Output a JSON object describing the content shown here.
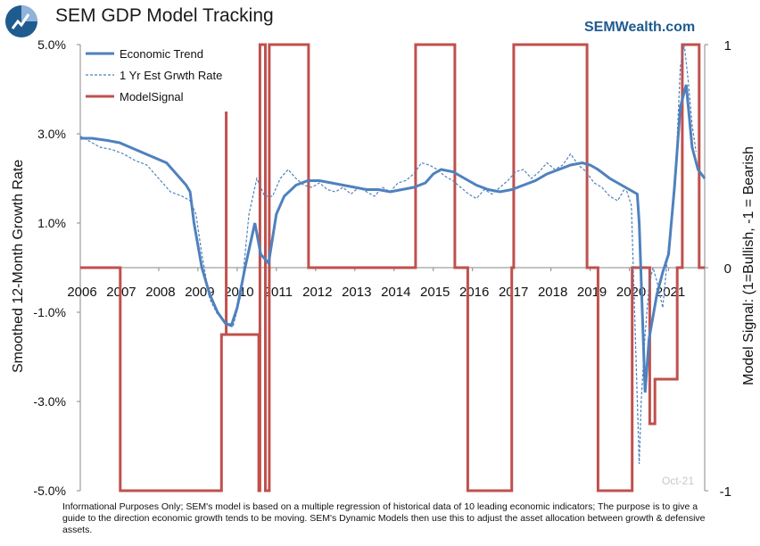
{
  "header": {
    "title": "SEM GDP Model Tracking",
    "brand": "SEMWealth.com"
  },
  "footnote": "Informational Purposes Only; SEM's model is based on a multiple regression of historical data of 10 leading economic indicators; The purpose is to give a guide to the direction economic growth tends to be moving. SEM's Dynamic Models then use this to adjust the asset allocation between growth & defensive assets.",
  "watermark": "Oct-21",
  "colors": {
    "trend": "#4f81bd",
    "estimate": "#4f81bd",
    "signal": "#c0504d",
    "axis": "#888888",
    "logo_blue": "#1f5b8f",
    "logo_light": "#8fb3d9"
  },
  "chart_data": {
    "type": "line",
    "title": "SEM GDP Model Tracking",
    "ylabel": "Smoothed 12-Month Growth Rate",
    "y2label": "Model Signal: (1=Bullish, -1 = Bearish",
    "ylim": [
      -5.0,
      5.0
    ],
    "y2lim": [
      -1,
      1
    ],
    "xlim": [
      2006.0,
      2021.92
    ],
    "yticks": [
      -5.0,
      -3.0,
      -1.0,
      1.0,
      3.0,
      5.0
    ],
    "ytick_labels": [
      "-5.0%",
      "-3.0%",
      "-1.0%",
      "1.0%",
      "3.0%",
      "5.0%"
    ],
    "y2ticks": [
      -1,
      0,
      1
    ],
    "y2tick_labels": [
      "-1",
      "0",
      "1"
    ],
    "xticks": [
      2006,
      2007,
      2008,
      2009,
      2010,
      2011,
      2012,
      2013,
      2014,
      2015,
      2016,
      2017,
      2018,
      2019,
      2020,
      2021
    ],
    "xtick_labels": [
      "2006",
      "2007",
      "2008",
      "2009",
      "2010",
      "2011",
      "2012",
      "2013",
      "2014",
      "2015",
      "2016",
      "2017",
      "2018",
      "2019",
      "2020",
      "2021"
    ],
    "grid": false,
    "legend": "top-left",
    "series": [
      {
        "name": "Economic Trend",
        "axis": "left",
        "style": "solid",
        "x": [
          2006.0,
          2006.3,
          2006.7,
          2007.0,
          2007.4,
          2007.8,
          2008.2,
          2008.5,
          2008.7,
          2008.8,
          2008.9,
          2009.1,
          2009.3,
          2009.5,
          2009.7,
          2009.85,
          2010.0,
          2010.2,
          2010.4,
          2010.45,
          2010.6,
          2010.8,
          2011.0,
          2011.2,
          2011.5,
          2011.8,
          2012.1,
          2012.4,
          2012.7,
          2013.0,
          2013.3,
          2013.6,
          2013.9,
          2014.2,
          2014.5,
          2014.8,
          2015.0,
          2015.2,
          2015.5,
          2015.8,
          2016.1,
          2016.4,
          2016.7,
          2017.0,
          2017.3,
          2017.6,
          2017.9,
          2018.2,
          2018.5,
          2018.8,
          2019.0,
          2019.2,
          2019.5,
          2019.8,
          2020.0,
          2020.1,
          2020.2,
          2020.25,
          2020.4,
          2020.5,
          2020.7,
          2020.85,
          2021.0,
          2021.15,
          2021.3,
          2021.45,
          2021.6,
          2021.75,
          2021.92
        ],
        "values": [
          2.9,
          2.9,
          2.85,
          2.8,
          2.65,
          2.5,
          2.35,
          2.05,
          1.85,
          1.7,
          1.0,
          0.0,
          -0.6,
          -1.0,
          -1.25,
          -1.3,
          -0.9,
          0.0,
          0.8,
          1.0,
          0.3,
          0.1,
          1.2,
          1.6,
          1.85,
          1.95,
          1.95,
          1.9,
          1.85,
          1.8,
          1.75,
          1.75,
          1.7,
          1.75,
          1.8,
          1.9,
          2.1,
          2.2,
          2.15,
          2.0,
          1.85,
          1.75,
          1.7,
          1.75,
          1.85,
          1.95,
          2.1,
          2.2,
          2.3,
          2.35,
          2.3,
          2.2,
          2.0,
          1.85,
          1.75,
          1.7,
          1.65,
          1.0,
          -2.8,
          -1.6,
          -0.6,
          -0.1,
          0.3,
          1.8,
          3.6,
          4.1,
          2.7,
          2.2,
          2.0
        ]
      },
      {
        "name": "1 Yr Est Grwth Rate",
        "axis": "left",
        "style": "dashed",
        "x": [
          2006.0,
          2006.2,
          2006.5,
          2006.8,
          2007.1,
          2007.4,
          2007.7,
          2008.0,
          2008.3,
          2008.6,
          2008.8,
          2008.95,
          2009.1,
          2009.3,
          2009.5,
          2009.7,
          2009.9,
          2010.1,
          2010.3,
          2010.5,
          2010.7,
          2010.9,
          2011.1,
          2011.3,
          2011.5,
          2011.7,
          2011.9,
          2012.1,
          2012.3,
          2012.5,
          2012.7,
          2012.9,
          2013.1,
          2013.3,
          2013.5,
          2013.7,
          2013.9,
          2014.1,
          2014.3,
          2014.5,
          2014.7,
          2014.9,
          2015.1,
          2015.3,
          2015.5,
          2015.7,
          2015.9,
          2016.1,
          2016.3,
          2016.5,
          2016.7,
          2016.9,
          2017.1,
          2017.3,
          2017.5,
          2017.7,
          2017.9,
          2018.1,
          2018.3,
          2018.5,
          2018.7,
          2018.9,
          2019.1,
          2019.3,
          2019.5,
          2019.7,
          2019.9,
          2020.05,
          2020.15,
          2020.25,
          2020.3,
          2020.4,
          2020.5,
          2020.6,
          2020.7,
          2020.85,
          2021.0,
          2021.1,
          2021.2,
          2021.3,
          2021.4,
          2021.5,
          2021.6,
          2021.7
        ],
        "values": [
          2.95,
          2.85,
          2.7,
          2.65,
          2.55,
          2.4,
          2.3,
          2.0,
          1.7,
          1.6,
          1.5,
          1.2,
          0.3,
          -0.7,
          -1.05,
          -1.2,
          -1.3,
          -0.6,
          1.2,
          2.0,
          1.6,
          1.6,
          2.0,
          2.2,
          2.0,
          1.85,
          1.8,
          1.9,
          1.75,
          1.7,
          1.8,
          1.65,
          1.8,
          1.7,
          1.6,
          1.8,
          1.7,
          1.9,
          1.95,
          2.1,
          2.35,
          2.3,
          2.2,
          2.05,
          1.95,
          1.8,
          1.65,
          1.55,
          1.75,
          1.65,
          1.8,
          1.95,
          2.15,
          2.2,
          2.0,
          2.15,
          2.35,
          2.2,
          2.3,
          2.55,
          2.3,
          2.15,
          1.9,
          1.8,
          1.6,
          1.5,
          1.8,
          1.4,
          -1.5,
          -4.4,
          -3.0,
          -1.5,
          -0.4,
          0.0,
          -0.3,
          -0.9,
          0.5,
          1.2,
          2.5,
          4.5,
          5.0,
          4.2,
          3.2,
          2.6
        ]
      },
      {
        "name": "ModelSignal",
        "axis": "right",
        "style": "step",
        "x": [
          2006.0,
          2007.02,
          2007.02,
          2009.6,
          2009.6,
          2009.72,
          2009.72,
          2009.72,
          2010.55,
          2010.55,
          2010.58,
          2010.58,
          2010.72,
          2010.72,
          2010.82,
          2010.82,
          2011.82,
          2011.82,
          2014.55,
          2014.55,
          2015.55,
          2015.55,
          2015.88,
          2015.88,
          2017.0,
          2017.0,
          2017.05,
          2017.05,
          2018.92,
          2018.92,
          2019.2,
          2019.2,
          2020.07,
          2020.07,
          2020.52,
          2020.52,
          2020.65,
          2020.65,
          2021.22,
          2021.22,
          2021.35,
          2021.35,
          2021.78,
          2021.78,
          2021.92
        ],
        "values": [
          0,
          0,
          -1,
          -1,
          -0.3,
          -0.3,
          0.7,
          -0.3,
          -0.3,
          -1,
          -1,
          1,
          1,
          -1,
          -1,
          1,
          1,
          0,
          0,
          1,
          1,
          0,
          0,
          -1,
          -1,
          0,
          0,
          1,
          1,
          0,
          0,
          -1,
          -1,
          0,
          0,
          -0.7,
          -0.7,
          -0.5,
          -0.5,
          0,
          0,
          1,
          1,
          0,
          0
        ]
      }
    ]
  }
}
